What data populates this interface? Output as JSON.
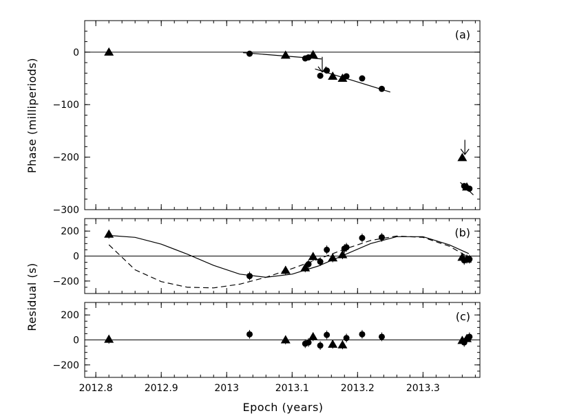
{
  "chart_data": [
    {
      "panel": "(a)",
      "type": "scatter",
      "ylabel": "Phase (milliperiods)",
      "xlabel": "",
      "xlim": [
        2012.783,
        2013.387
      ],
      "ylim": [
        -300,
        60
      ],
      "yticks": [
        0,
        -100,
        -200,
        -300
      ],
      "xticks": [
        2012.8,
        2012.9,
        2013,
        2013.1,
        2013.2,
        2013.3
      ],
      "series": [
        {
          "marker": "triangle",
          "points": [
            [
              2012.82,
              0
            ],
            [
              2013.09,
              -6
            ],
            [
              2013.132,
              -5
            ],
            [
              2013.162,
              -46
            ],
            [
              2013.177,
              -50
            ],
            [
              2013.36,
              -201
            ],
            [
              2013.367,
              -257
            ]
          ]
        },
        {
          "marker": "circle",
          "points": [
            [
              2013.035,
              -3
            ],
            [
              2013.12,
              -12
            ],
            [
              2013.125,
              -10
            ],
            [
              2013.143,
              -45
            ],
            [
              2013.153,
              -35
            ],
            [
              2013.183,
              -46
            ],
            [
              2013.207,
              -50
            ],
            [
              2013.237,
              -70
            ],
            [
              2013.363,
              -255
            ],
            [
              2013.371,
              -260
            ]
          ]
        }
      ],
      "fit_lines": [
        {
          "x": [
            2013.025,
            2013.145
          ],
          "y": [
            -1,
            -13
          ]
        },
        {
          "x": [
            2013.135,
            2013.25
          ],
          "y": [
            -32,
            -76
          ]
        },
        {
          "x": [
            2013.357,
            2013.377
          ],
          "y": [
            -248,
            -272
          ]
        }
      ],
      "arrows": [
        {
          "x": 2013.146,
          "y_from": -9,
          "y_to": -38
        },
        {
          "x": 2013.364,
          "y_from": -167,
          "y_to": -195
        }
      ],
      "hline": 0
    },
    {
      "panel": "(b)",
      "type": "scatter",
      "ylabel": "Residual (s)",
      "xlim": [
        2012.783,
        2013.387
      ],
      "ylim": [
        -300,
        300
      ],
      "yticks": [
        200,
        0,
        -200
      ],
      "series": [
        {
          "marker": "triangle",
          "points": [
            [
              2012.82,
              175
            ],
            [
              2013.09,
              -115
            ],
            [
              2013.12,
              -95
            ],
            [
              2013.132,
              -5
            ],
            [
              2013.162,
              -15
            ],
            [
              2013.177,
              10
            ],
            [
              2013.36,
              -10
            ],
            [
              2013.367,
              -25
            ]
          ]
        },
        {
          "marker": "circle",
          "points": [
            [
              2013.035,
              -160
            ],
            [
              2013.125,
              -65
            ],
            [
              2013.143,
              -45
            ],
            [
              2013.153,
              50
            ],
            [
              2013.18,
              60
            ],
            [
              2013.183,
              70
            ],
            [
              2013.207,
              145
            ],
            [
              2013.237,
              150
            ],
            [
              2013.363,
              -35
            ],
            [
              2013.371,
              -25
            ]
          ]
        }
      ],
      "error": 35,
      "curves": [
        {
          "style": "solid",
          "x": [
            2012.82,
            2012.86,
            2012.9,
            2012.94,
            2012.98,
            2013.02,
            2013.06,
            2013.1,
            2013.14,
            2013.18,
            2013.22,
            2013.26,
            2013.3,
            2013.34,
            2013.37
          ],
          "y": [
            165,
            150,
            95,
            15,
            -75,
            -145,
            -170,
            -145,
            -80,
            10,
            100,
            155,
            155,
            90,
            20
          ]
        },
        {
          "style": "dashed",
          "x": [
            2012.82,
            2012.86,
            2012.9,
            2012.94,
            2012.98,
            2013.02,
            2013.06,
            2013.1,
            2013.14,
            2013.18,
            2013.22,
            2013.26,
            2013.3,
            2013.34,
            2013.37
          ],
          "y": [
            90,
            -110,
            -205,
            -250,
            -255,
            -225,
            -170,
            -100,
            -25,
            55,
            125,
            160,
            150,
            80,
            -10
          ]
        }
      ],
      "hline": 0
    },
    {
      "panel": "(c)",
      "type": "scatter",
      "xlabel": "Epoch (years)",
      "xlim": [
        2012.783,
        2013.387
      ],
      "ylim": [
        -300,
        300
      ],
      "yticks": [
        200,
        0,
        -200
      ],
      "series": [
        {
          "marker": "triangle",
          "points": [
            [
              2012.82,
              5
            ],
            [
              2013.09,
              0
            ],
            [
              2013.132,
              25
            ],
            [
              2013.162,
              -35
            ],
            [
              2013.177,
              -40
            ],
            [
              2013.36,
              -5
            ],
            [
              2013.367,
              10
            ]
          ]
        },
        {
          "marker": "circle",
          "points": [
            [
              2013.035,
              45
            ],
            [
              2013.12,
              -30
            ],
            [
              2013.125,
              -20
            ],
            [
              2013.143,
              -45
            ],
            [
              2013.153,
              40
            ],
            [
              2013.183,
              15
            ],
            [
              2013.207,
              45
            ],
            [
              2013.237,
              25
            ],
            [
              2013.363,
              -20
            ],
            [
              2013.371,
              25
            ]
          ]
        }
      ],
      "error": 35,
      "hline": 0
    }
  ],
  "figure": {
    "xlabel": "Epoch (years)",
    "ylabel_top": "Phase (milliperiods)",
    "ylabel_bottom": "Residual (s)",
    "xtick_labels": [
      "2012.8",
      "2012.9",
      "2013",
      "2013.1",
      "2013.2",
      "2013.3"
    ],
    "panel_labels": [
      "(a)",
      "(b)",
      "(c)"
    ],
    "ytick_labels_a": [
      "0",
      "−100",
      "−200",
      "−300"
    ],
    "ytick_labels_b": [
      "200",
      "0",
      "−200"
    ],
    "ytick_labels_c": [
      "200",
      "0",
      "−200"
    ]
  }
}
